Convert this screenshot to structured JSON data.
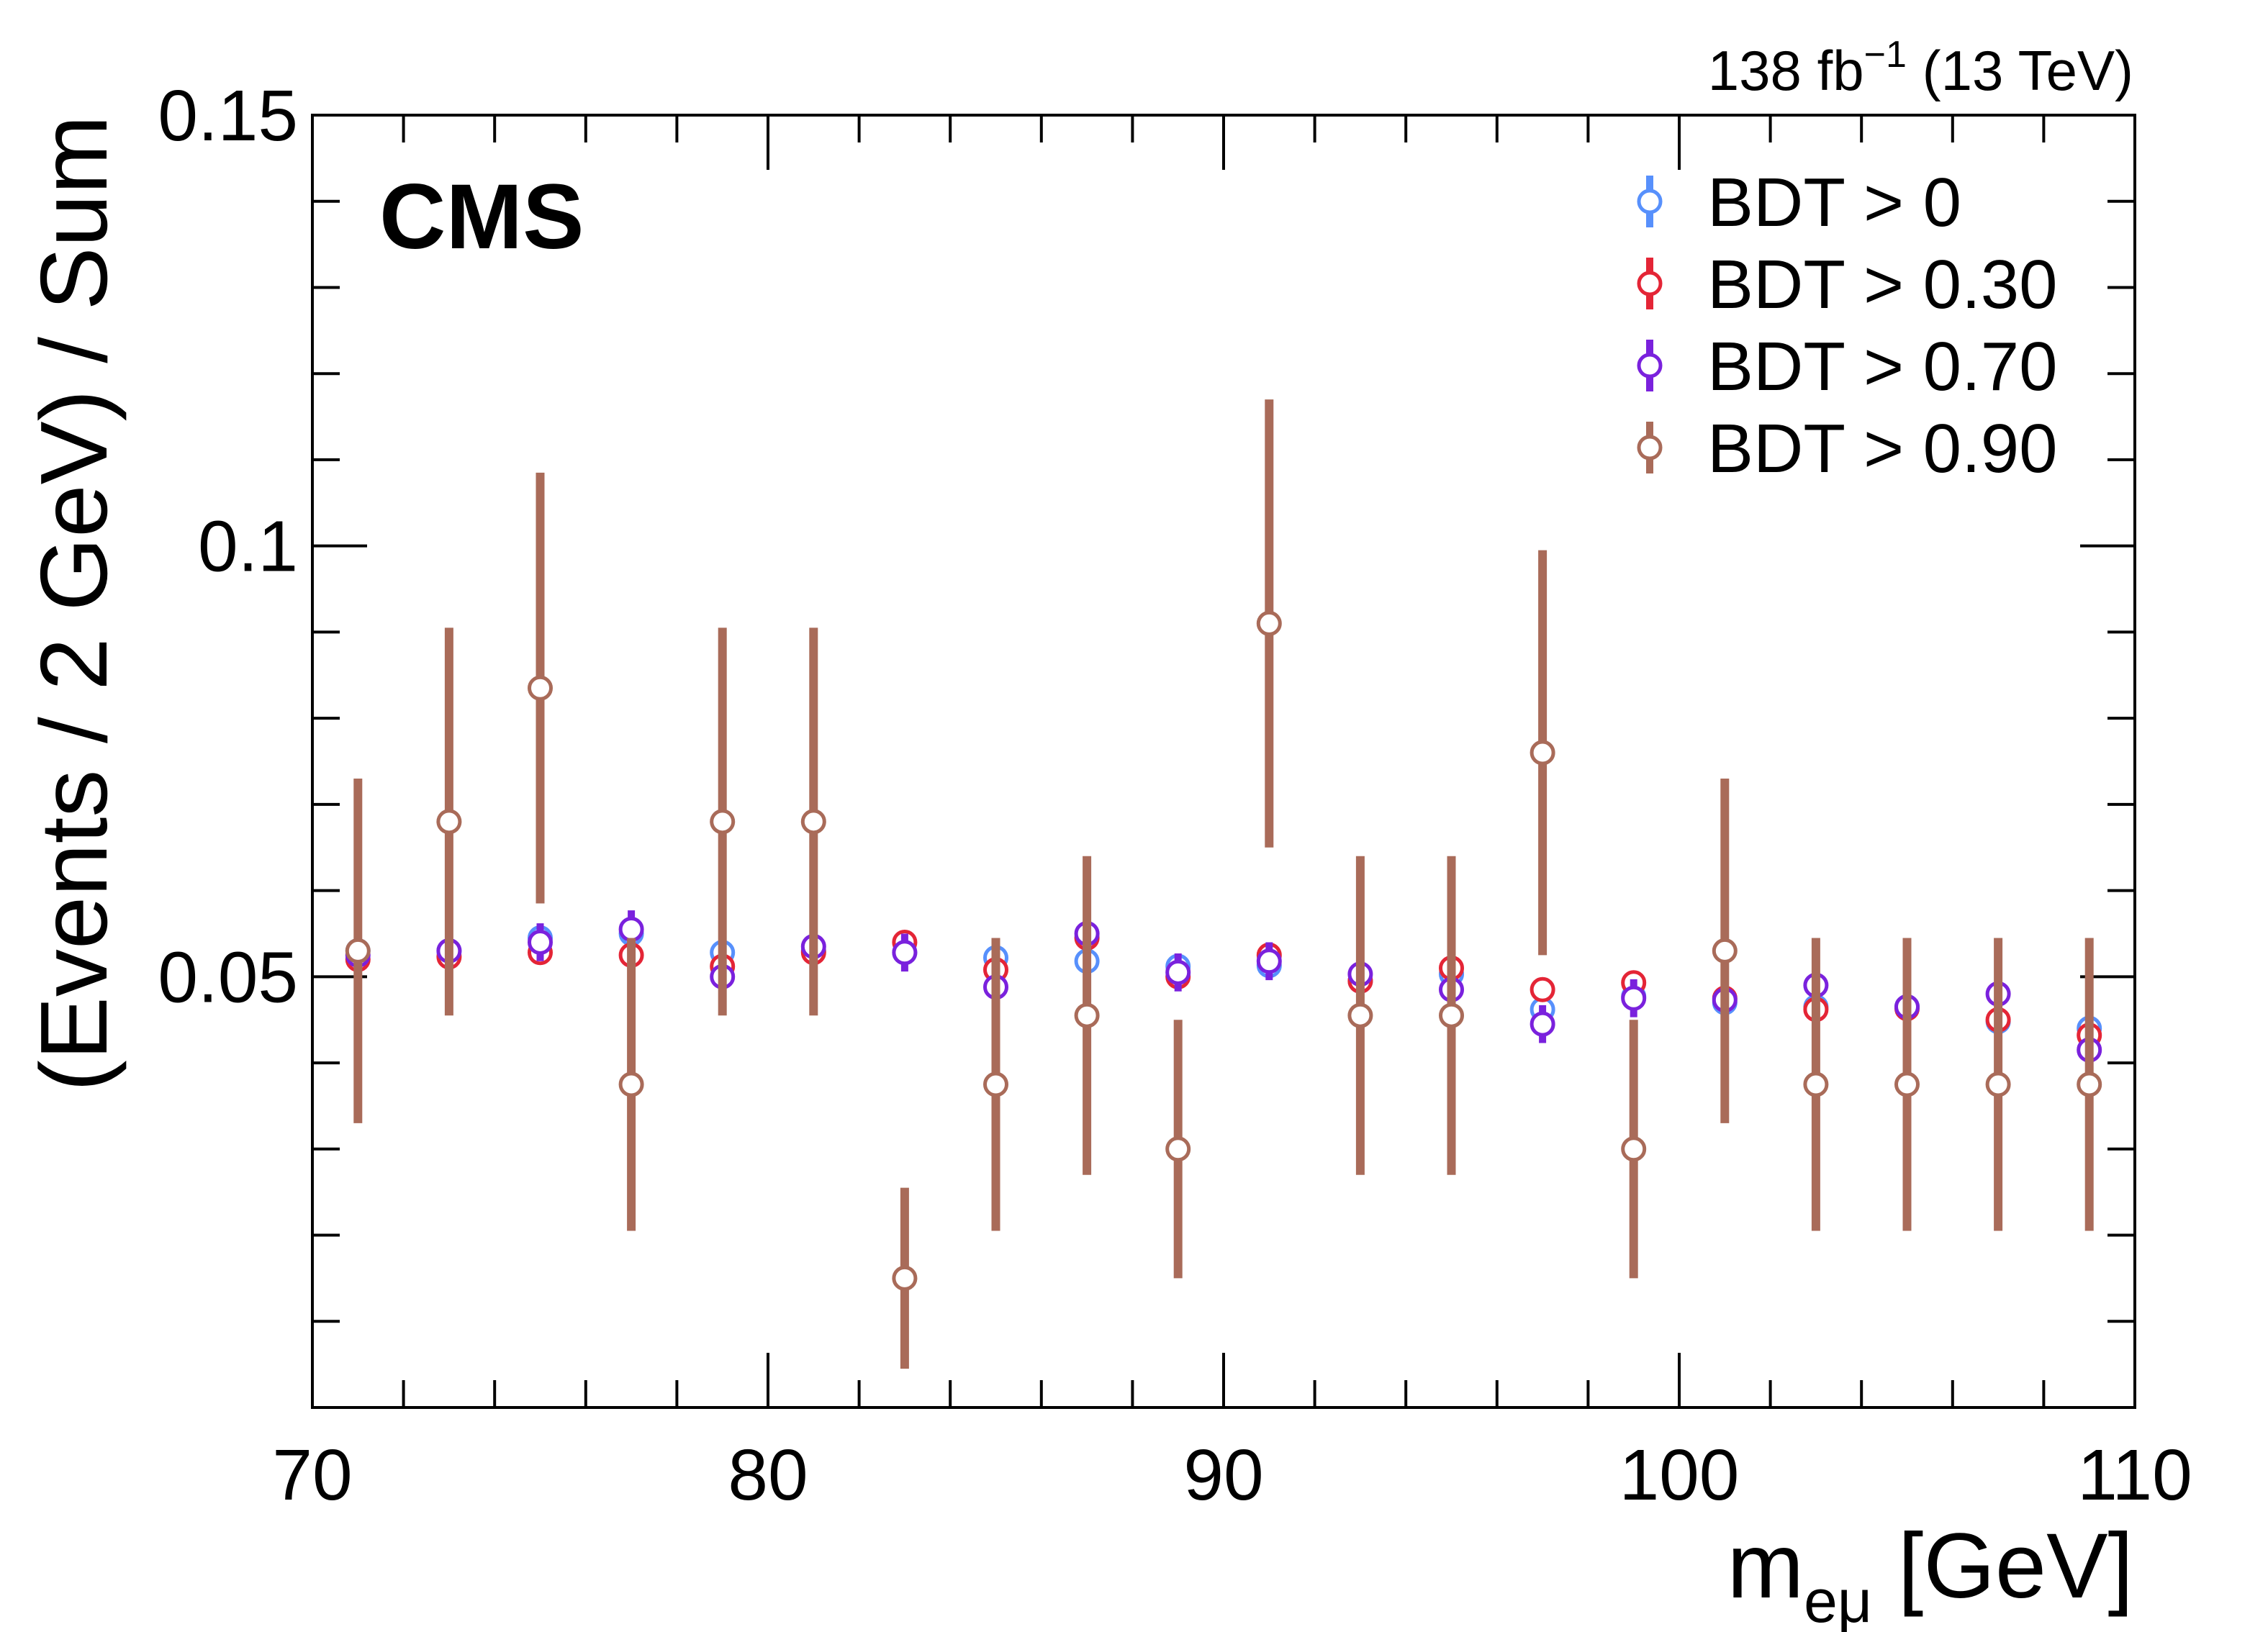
{
  "chart_data": {
    "type": "scatter",
    "experiment_label": "CMS",
    "lumi_label": {
      "main": "138 fb",
      "superscript": "−1",
      "suffix": " (13 TeV)"
    },
    "xlabel": {
      "main": "m",
      "subscript": "eμ",
      "suffix": " [GeV]"
    },
    "ylabel": "(Events / 2 GeV) / Sum",
    "xlim": [
      70,
      110
    ],
    "ylim": [
      0.0,
      0.15
    ],
    "x_ticks": [
      70,
      80,
      90,
      100,
      110
    ],
    "x_tick_labels": [
      "70",
      "80",
      "90",
      "100",
      "110"
    ],
    "y_ticks": [
      0.05,
      0.1,
      0.15
    ],
    "y_tick_labels": [
      "0.05",
      "0.1",
      "0.15"
    ],
    "legend_position": "top-right",
    "x": [
      71,
      73,
      75,
      77,
      79,
      81,
      83,
      85,
      87,
      89,
      91,
      93,
      95,
      97,
      99,
      101,
      103,
      105,
      107,
      109
    ],
    "series": [
      {
        "name": "BDT > 0",
        "color": "#5790fc",
        "values": [
          0.053,
          0.053,
          0.0545,
          0.055,
          0.0528,
          0.053,
          0.0528,
          0.0522,
          0.0518,
          0.0512,
          0.0513,
          0.0495,
          0.0503,
          0.0462,
          0.0477,
          0.047,
          0.0465,
          0.0465,
          0.0448,
          0.044
        ],
        "errors": [
          0.0008,
          0.0008,
          0.0008,
          0.0008,
          0.0008,
          0.0008,
          0.0008,
          0.0008,
          0.0008,
          0.0008,
          0.0008,
          0.0008,
          0.0008,
          0.0008,
          0.0008,
          0.0008,
          0.0008,
          0.0008,
          0.0008,
          0.0008
        ]
      },
      {
        "name": "BDT > 0.30",
        "color": "#e42536",
        "values": [
          0.052,
          0.0523,
          0.0528,
          0.0525,
          0.0512,
          0.0528,
          0.054,
          0.0508,
          0.0545,
          0.05,
          0.0525,
          0.0495,
          0.051,
          0.0485,
          0.0493,
          0.0475,
          0.0462,
          0.0463,
          0.045,
          0.0432
        ],
        "errors": [
          0.0012,
          0.0012,
          0.0012,
          0.0012,
          0.0012,
          0.0012,
          0.0012,
          0.0012,
          0.0012,
          0.0012,
          0.0012,
          0.0012,
          0.0012,
          0.0012,
          0.0012,
          0.0012,
          0.0012,
          0.0012,
          0.0012,
          0.0012
        ]
      },
      {
        "name": "BDT > 0.70",
        "color": "#7a21dd",
        "values": [
          0.0525,
          0.053,
          0.054,
          0.0555,
          0.05,
          0.0535,
          0.0528,
          0.0488,
          0.055,
          0.0505,
          0.0518,
          0.0503,
          0.0485,
          0.0445,
          0.0475,
          0.0473,
          0.049,
          0.0465,
          0.048,
          0.0415
        ],
        "errors": [
          0.0022,
          0.0022,
          0.0022,
          0.0022,
          0.0022,
          0.0022,
          0.0022,
          0.0022,
          0.0022,
          0.0022,
          0.0022,
          0.0022,
          0.0022,
          0.0022,
          0.0022,
          0.0022,
          0.0022,
          0.0022,
          0.0022,
          0.0022
        ]
      },
      {
        "name": "BDT > 0.90",
        "color": "#a96b59",
        "values": [
          0.053,
          0.068,
          0.0835,
          0.0375,
          0.068,
          0.068,
          0.015,
          0.0375,
          0.0455,
          0.03,
          0.091,
          0.0455,
          0.0455,
          0.076,
          0.03,
          0.053,
          0.0375,
          0.0375,
          0.0375,
          0.0375
        ],
        "errors": [
          0.02,
          0.0225,
          0.025,
          0.017,
          0.0225,
          0.0225,
          0.0105,
          0.017,
          0.0185,
          0.015,
          0.026,
          0.0185,
          0.0185,
          0.0235,
          0.015,
          0.02,
          0.017,
          0.017,
          0.017,
          0.017
        ]
      }
    ]
  }
}
